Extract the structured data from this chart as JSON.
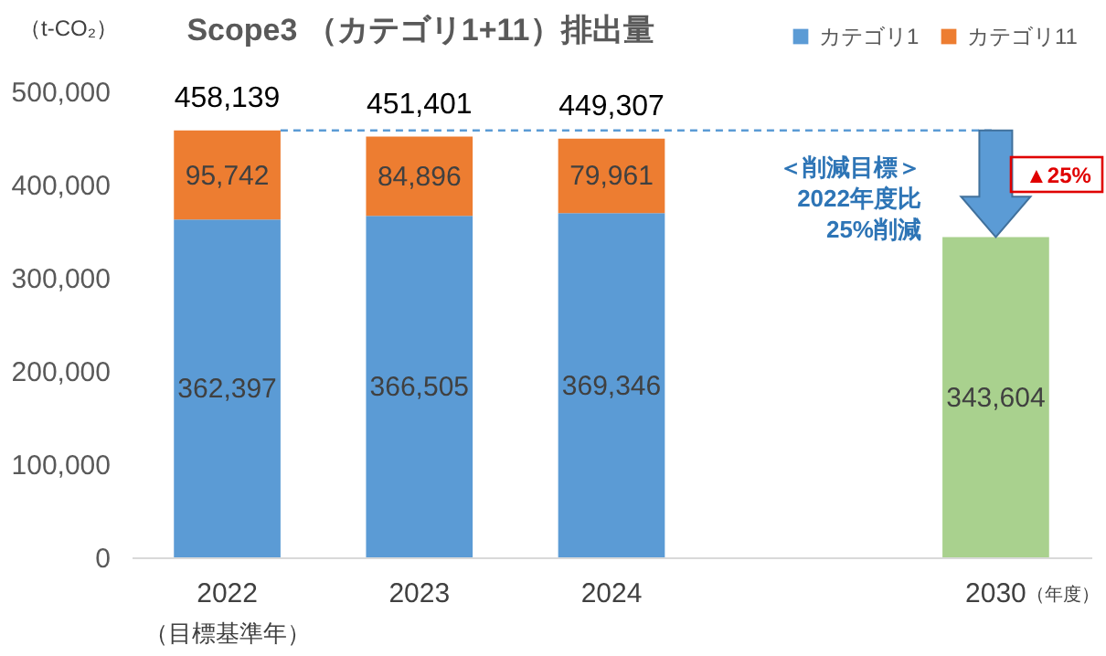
{
  "chart_data": {
    "type": "bar",
    "title": "Scope3 （カテゴリ1+11）排出量",
    "ylabel": "（t-CO₂）",
    "xlabel": "（年度）",
    "categories": [
      "2022",
      "2023",
      "2024",
      null,
      "2030"
    ],
    "series": [
      {
        "name": "カテゴリ1",
        "color": "#5b9bd5",
        "values": [
          362397,
          366505,
          369346,
          null,
          null
        ],
        "value_labels": [
          "362,397",
          "366,505",
          "369,346",
          null,
          null
        ]
      },
      {
        "name": "カテゴリ11",
        "color": "#ed7d31",
        "values": [
          95742,
          84896,
          79961,
          null,
          null
        ],
        "value_labels": [
          "95,742",
          "84,896",
          "79,961",
          null,
          null
        ]
      },
      {
        "color": "#a9d18e",
        "values": [
          null,
          null,
          null,
          null,
          343604
        ],
        "value_labels": [
          null,
          null,
          null,
          null,
          "343,604"
        ]
      }
    ],
    "stacked": true,
    "totals": [
      "458,139",
      "451,401",
      "449,307",
      null,
      null
    ],
    "ylim": [
      0,
      500000
    ],
    "yticks": [
      0,
      {
        "value": 100000,
        "label": "100,000"
      },
      {
        "value": 200000,
        "label": "200,000"
      },
      {
        "value": 300000,
        "label": "300,000"
      },
      {
        "value": 400000,
        "label": "400,000"
      },
      {
        "value": 500000,
        "label": "500,000"
      }
    ],
    "legend": "top right",
    "ref_lines": [
      {
        "axis": "y",
        "value": 458139,
        "color": "#5b9bd5",
        "line_style": "dashed"
      }
    ],
    "annotations": [
      "（目標基準年）",
      "＜削減目標＞",
      "2022年度比",
      "25%削減",
      "▲25%"
    ]
  }
}
